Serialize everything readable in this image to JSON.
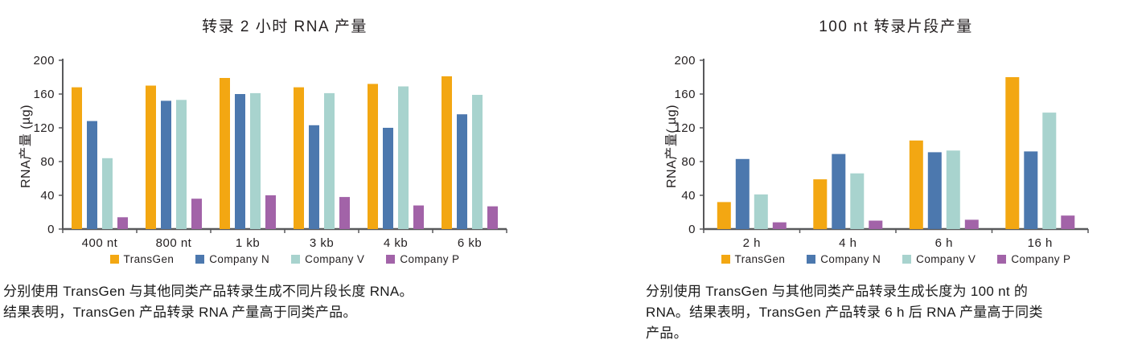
{
  "chart_data": [
    {
      "type": "bar",
      "title": "转录 2 小时 RNA 产量",
      "ylabel": "RNA产量 (µg)",
      "xlabel": "",
      "ylim": [
        0,
        200
      ],
      "y_ticks": [
        0,
        40,
        80,
        120,
        160,
        200
      ],
      "grid": false,
      "legend_position": "bottom",
      "categories": [
        "400 nt",
        "800 nt",
        "1 kb",
        "3 kb",
        "4 kb",
        "6 kb"
      ],
      "series": [
        {
          "name": "TransGen",
          "color": "#F3A712",
          "values": [
            168,
            170,
            179,
            168,
            172,
            181
          ]
        },
        {
          "name": "Company N",
          "color": "#4C78AE",
          "values": [
            128,
            152,
            160,
            123,
            120,
            136
          ]
        },
        {
          "name": "Company V",
          "color": "#A8D3CE",
          "values": [
            84,
            153,
            161,
            161,
            169,
            159
          ]
        },
        {
          "name": "Company P",
          "color": "#A263A8",
          "values": [
            14,
            36,
            40,
            38,
            28,
            27
          ]
        }
      ],
      "caption_lines": [
        "分别使用 TransGen 与其他同类产品转录生成不同片段长度 RNA。",
        "结果表明，TransGen 产品转录 RNA 产量高于同类产品。"
      ]
    },
    {
      "type": "bar",
      "title": "100 nt 转录片段产量",
      "ylabel": "RNA产量( µg)",
      "xlabel": "",
      "ylim": [
        0,
        200
      ],
      "y_ticks": [
        0,
        40,
        80,
        120,
        160,
        200
      ],
      "grid": false,
      "legend_position": "bottom",
      "categories": [
        "2 h",
        "4 h",
        "6 h",
        "16 h"
      ],
      "series": [
        {
          "name": "TransGen",
          "color": "#F3A712",
          "values": [
            32,
            59,
            105,
            180
          ]
        },
        {
          "name": "Company N",
          "color": "#4C78AE",
          "values": [
            83,
            89,
            91,
            92
          ]
        },
        {
          "name": "Company V",
          "color": "#A8D3CE",
          "values": [
            41,
            66,
            93,
            138
          ]
        },
        {
          "name": "Company P",
          "color": "#A263A8",
          "values": [
            8,
            10,
            11,
            16
          ]
        }
      ],
      "caption_lines": [
        "分别使用 TransGen 与其他同类产品转录生成长度为 100 nt 的",
        "RNA。结果表明，TransGen 产品转录 6 h 后 RNA 产量高于同类",
        "产品。"
      ]
    }
  ],
  "colors": {
    "axis": "#58595B",
    "text": "#231F20"
  }
}
